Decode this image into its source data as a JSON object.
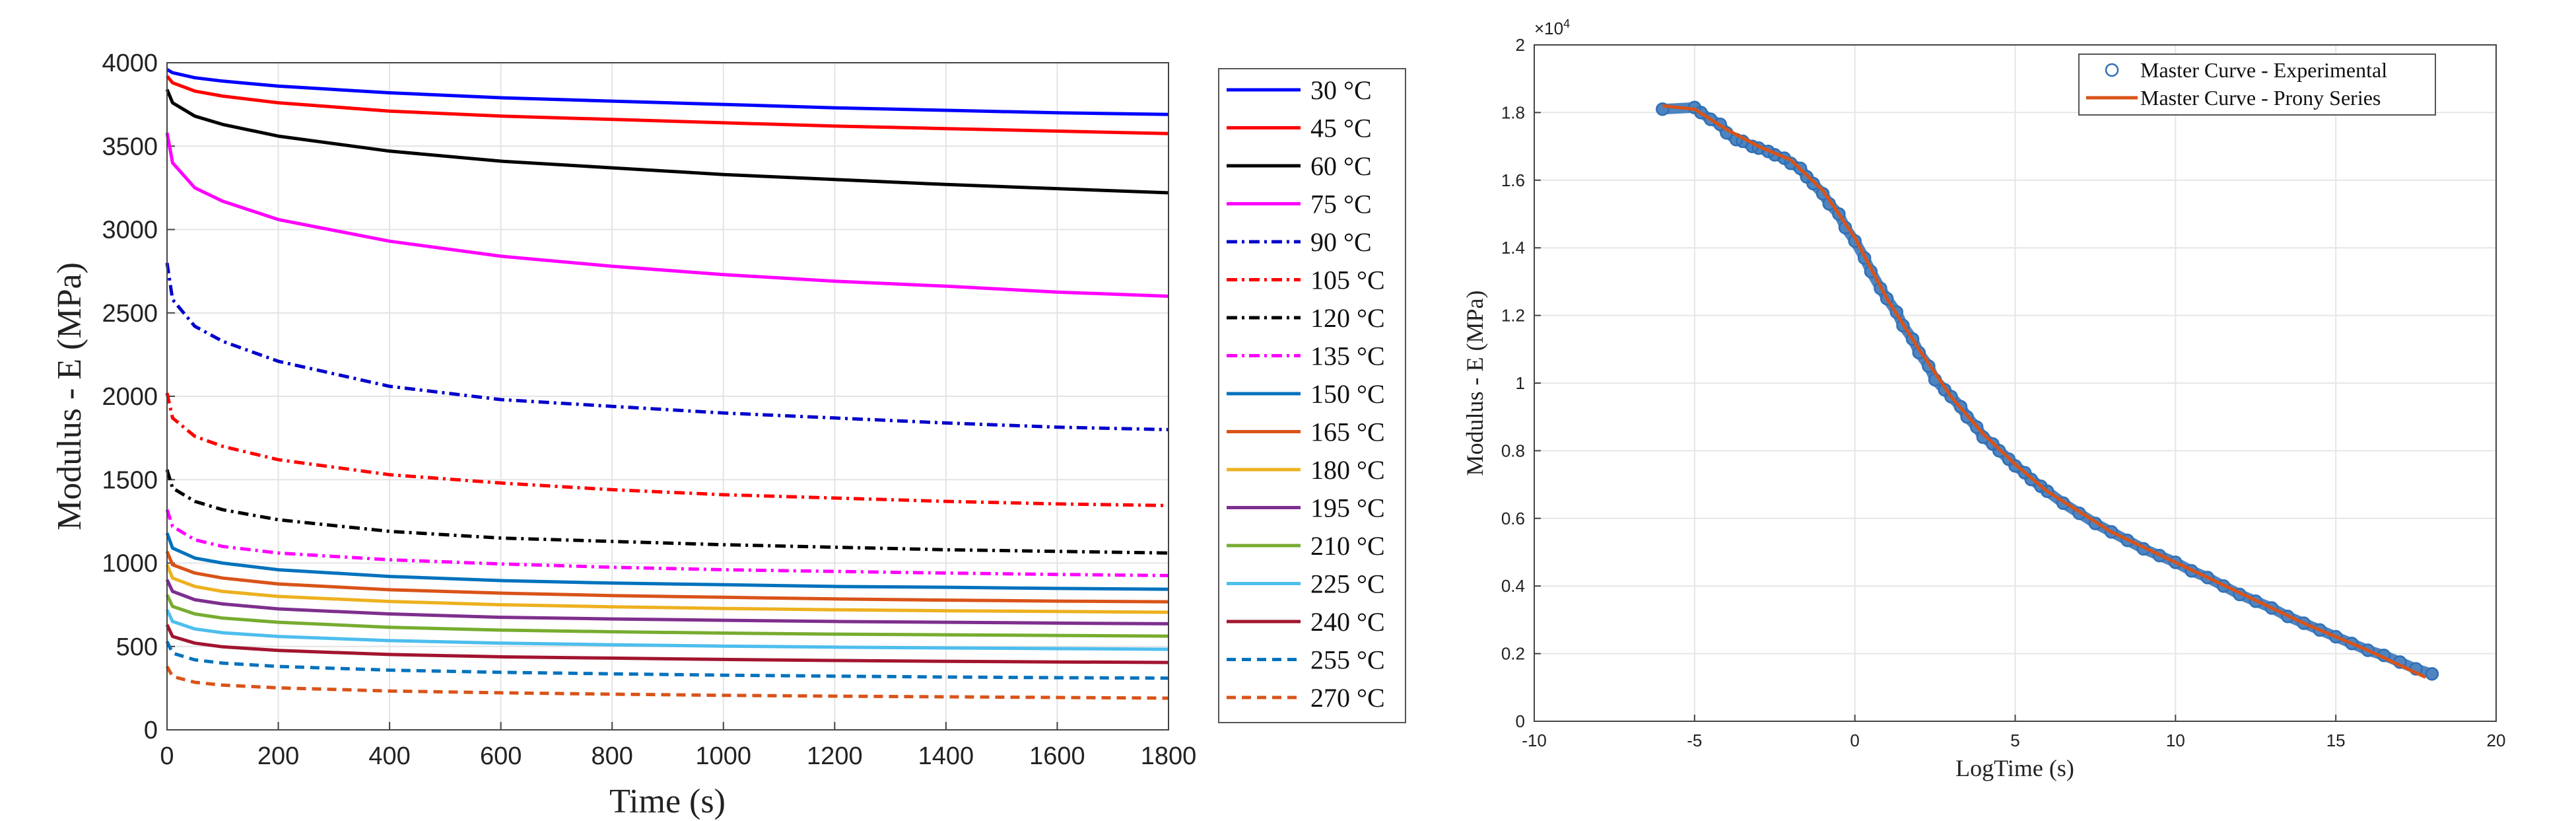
{
  "chart_data": [
    {
      "type": "line",
      "title": "",
      "xlabel": "Time (s)",
      "ylabel": "Modulus - E (MPa)",
      "xlim": [
        0,
        1800
      ],
      "ylim": [
        0,
        4000
      ],
      "xticks": [
        "0",
        "200",
        "400",
        "600",
        "800",
        "1000",
        "1200",
        "1400",
        "1600",
        "1800"
      ],
      "yticks": [
        "0",
        "500",
        "1000",
        "1500",
        "2000",
        "2500",
        "3000",
        "3500",
        "4000"
      ],
      "grid": true,
      "legend_position": "outside-right",
      "x": [
        0,
        10,
        50,
        100,
        200,
        400,
        600,
        800,
        1000,
        1200,
        1400,
        1600,
        1800
      ],
      "series": [
        {
          "name": "30 °C",
          "color": "#0000ff",
          "dash": "solid",
          "values": [
            3960,
            3940,
            3910,
            3890,
            3860,
            3820,
            3790,
            3770,
            3750,
            3730,
            3715,
            3700,
            3690
          ]
        },
        {
          "name": "45 °C",
          "color": "#ff0000",
          "dash": "solid",
          "values": [
            3920,
            3880,
            3830,
            3800,
            3760,
            3710,
            3680,
            3660,
            3640,
            3620,
            3605,
            3590,
            3575
          ]
        },
        {
          "name": "60 °C",
          "color": "#000000",
          "dash": "solid",
          "values": [
            3840,
            3760,
            3680,
            3630,
            3560,
            3470,
            3410,
            3370,
            3330,
            3300,
            3270,
            3245,
            3220
          ]
        },
        {
          "name": "75 °C",
          "color": "#ff00ff",
          "dash": "solid",
          "values": [
            3580,
            3400,
            3250,
            3170,
            3060,
            2930,
            2840,
            2780,
            2730,
            2690,
            2660,
            2625,
            2600
          ]
        },
        {
          "name": "90 °C",
          "color": "#0000cc",
          "dash": "dashdot",
          "values": [
            2800,
            2580,
            2420,
            2330,
            2210,
            2060,
            1980,
            1940,
            1900,
            1870,
            1840,
            1815,
            1800
          ]
        },
        {
          "name": "105 °C",
          "color": "#ff0000",
          "dash": "dashdot",
          "values": [
            2020,
            1870,
            1760,
            1700,
            1620,
            1530,
            1480,
            1440,
            1410,
            1390,
            1370,
            1355,
            1345
          ]
        },
        {
          "name": "120 °C",
          "color": "#000000",
          "dash": "dashdot",
          "values": [
            1560,
            1450,
            1370,
            1320,
            1260,
            1190,
            1150,
            1130,
            1110,
            1095,
            1080,
            1070,
            1060
          ]
        },
        {
          "name": "135 °C",
          "color": "#ff00ff",
          "dash": "dashdot",
          "values": [
            1320,
            1220,
            1140,
            1100,
            1060,
            1020,
            995,
            975,
            960,
            950,
            940,
            932,
            925
          ]
        },
        {
          "name": "150 °C",
          "color": "#0072bd",
          "dash": "solid",
          "values": [
            1180,
            1090,
            1030,
            1000,
            960,
            920,
            895,
            880,
            870,
            860,
            855,
            848,
            843
          ]
        },
        {
          "name": "165 °C",
          "color": "#d95319",
          "dash": "solid",
          "values": [
            1070,
            990,
            940,
            910,
            875,
            840,
            820,
            805,
            795,
            785,
            778,
            772,
            768
          ]
        },
        {
          "name": "180 °C",
          "color": "#edb120",
          "dash": "solid",
          "values": [
            990,
            910,
            860,
            830,
            800,
            770,
            750,
            738,
            728,
            720,
            714,
            710,
            705
          ]
        },
        {
          "name": "195 °C",
          "color": "#7e2f8e",
          "dash": "solid",
          "values": [
            900,
            830,
            780,
            755,
            725,
            695,
            675,
            665,
            657,
            650,
            645,
            640,
            636
          ]
        },
        {
          "name": "210 °C",
          "color": "#77ac30",
          "dash": "solid",
          "values": [
            810,
            740,
            695,
            670,
            645,
            615,
            598,
            588,
            580,
            574,
            570,
            566,
            562
          ]
        },
        {
          "name": "225 °C",
          "color": "#4dbeee",
          "dash": "solid",
          "values": [
            720,
            650,
            605,
            582,
            560,
            535,
            520,
            510,
            502,
            496,
            491,
            487,
            483
          ]
        },
        {
          "name": "240 °C",
          "color": "#a2142f",
          "dash": "solid",
          "values": [
            630,
            560,
            520,
            498,
            476,
            452,
            438,
            430,
            422,
            416,
            411,
            407,
            404
          ]
        },
        {
          "name": "255 °C",
          "color": "#0072bd",
          "dash": "dashed",
          "values": [
            530,
            460,
            420,
            400,
            380,
            358,
            345,
            336,
            328,
            322,
            317,
            313,
            310
          ]
        },
        {
          "name": "270 °C",
          "color": "#d95319",
          "dash": "dashed",
          "values": [
            380,
            320,
            285,
            268,
            252,
            233,
            222,
            214,
            207,
            202,
            198,
            194,
            190
          ]
        }
      ]
    },
    {
      "type": "scatter",
      "title": "",
      "xlabel": "LogTime (s)",
      "ylabel": "Modulus - E (MPa)",
      "y_exponent_label": "×10",
      "y_exponent_power": "4",
      "xlim": [
        -10,
        20
      ],
      "ylim": [
        0,
        2
      ],
      "xticks": [
        "-10",
        "-5",
        "0",
        "5",
        "10",
        "15",
        "20"
      ],
      "yticks": [
        "0",
        "0.2",
        "0.4",
        "0.6",
        "0.8",
        "1",
        "1.2",
        "1.4",
        "1.6",
        "1.8",
        "2"
      ],
      "grid": true,
      "legend_position": "top-right",
      "legend": [
        "Master Curve - Experimental",
        "Master Curve - Prony Series"
      ],
      "series": [
        {
          "name": "Master Curve - Experimental",
          "color": "#2f6fb5",
          "marker": "circle",
          "x": [
            -6.0,
            -5.0,
            -4.8,
            -4.5,
            -4.2,
            -4.0,
            -3.7,
            -3.5,
            -3.2,
            -3.0,
            -2.7,
            -2.5,
            -2.2,
            -2.0,
            -1.7,
            -1.5,
            -1.3,
            -1.0,
            -0.8,
            -0.5,
            -0.3,
            0.0,
            0.3,
            0.5,
            0.8,
            1.0,
            1.3,
            1.5,
            1.8,
            2.0,
            2.3,
            2.5,
            2.8,
            3.0,
            3.3,
            3.5,
            3.8,
            4.0,
            4.3,
            4.5,
            4.8,
            5.0,
            5.3,
            5.5,
            5.8,
            6.0,
            6.5,
            7.0,
            7.5,
            8.0,
            8.5,
            9.0,
            9.5,
            10.0,
            10.5,
            11.0,
            11.5,
            12.0,
            12.5,
            13.0,
            13.5,
            14.0,
            14.5,
            15.0,
            15.5,
            16.0,
            16.5,
            17.0,
            17.5,
            18.0
          ],
          "y": [
            1.81,
            1.815,
            1.8,
            1.78,
            1.765,
            1.74,
            1.72,
            1.715,
            1.7,
            1.695,
            1.685,
            1.675,
            1.665,
            1.65,
            1.635,
            1.61,
            1.59,
            1.56,
            1.53,
            1.5,
            1.46,
            1.42,
            1.37,
            1.33,
            1.28,
            1.25,
            1.21,
            1.17,
            1.13,
            1.09,
            1.05,
            1.01,
            0.98,
            0.96,
            0.93,
            0.9,
            0.87,
            0.84,
            0.82,
            0.8,
            0.775,
            0.755,
            0.735,
            0.715,
            0.695,
            0.68,
            0.645,
            0.615,
            0.585,
            0.56,
            0.535,
            0.51,
            0.49,
            0.47,
            0.445,
            0.425,
            0.4,
            0.375,
            0.355,
            0.335,
            0.31,
            0.29,
            0.27,
            0.25,
            0.23,
            0.21,
            0.195,
            0.175,
            0.155,
            0.14
          ]
        },
        {
          "name": "Master Curve - Prony Series",
          "color": "#d95319",
          "marker": "line",
          "x": [
            -6.0,
            -5.0,
            -4.0,
            -3.0,
            -2.0,
            -1.0,
            0.0,
            1.0,
            2.0,
            3.0,
            4.0,
            5.0,
            6.0,
            8.0,
            10.0,
            12.0,
            14.0,
            16.0,
            17.8
          ],
          "y": [
            1.82,
            1.81,
            1.75,
            1.7,
            1.66,
            1.57,
            1.43,
            1.25,
            1.1,
            0.96,
            0.85,
            0.76,
            0.68,
            0.56,
            0.47,
            0.38,
            0.29,
            0.21,
            0.13
          ]
        }
      ]
    }
  ]
}
